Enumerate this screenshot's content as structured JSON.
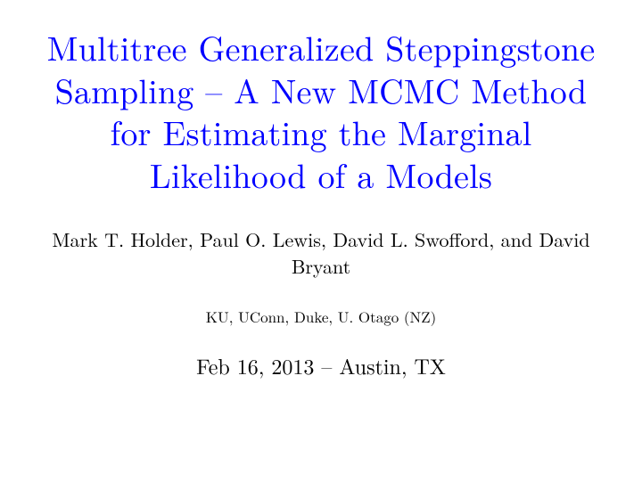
{
  "title": "Multitree Generalized Steppingstone Sampling – A New MCMC Method for Estimating the Marginal Likelihood of a Models",
  "authors": "Mark T. Holder, Paul O. Lewis, David L. Swoﬀord, and David Bryant",
  "affiliations": "KU, UConn, Duke, U. Otago (NZ)",
  "date_location": "Feb 16, 2013 – Austin, TX",
  "colors": {
    "title": "#0000ff",
    "body": "#000000",
    "background": "#ffffff"
  },
  "fontsizes": {
    "title": 38,
    "authors": 22,
    "affiliations": 17,
    "date_location": 24
  }
}
